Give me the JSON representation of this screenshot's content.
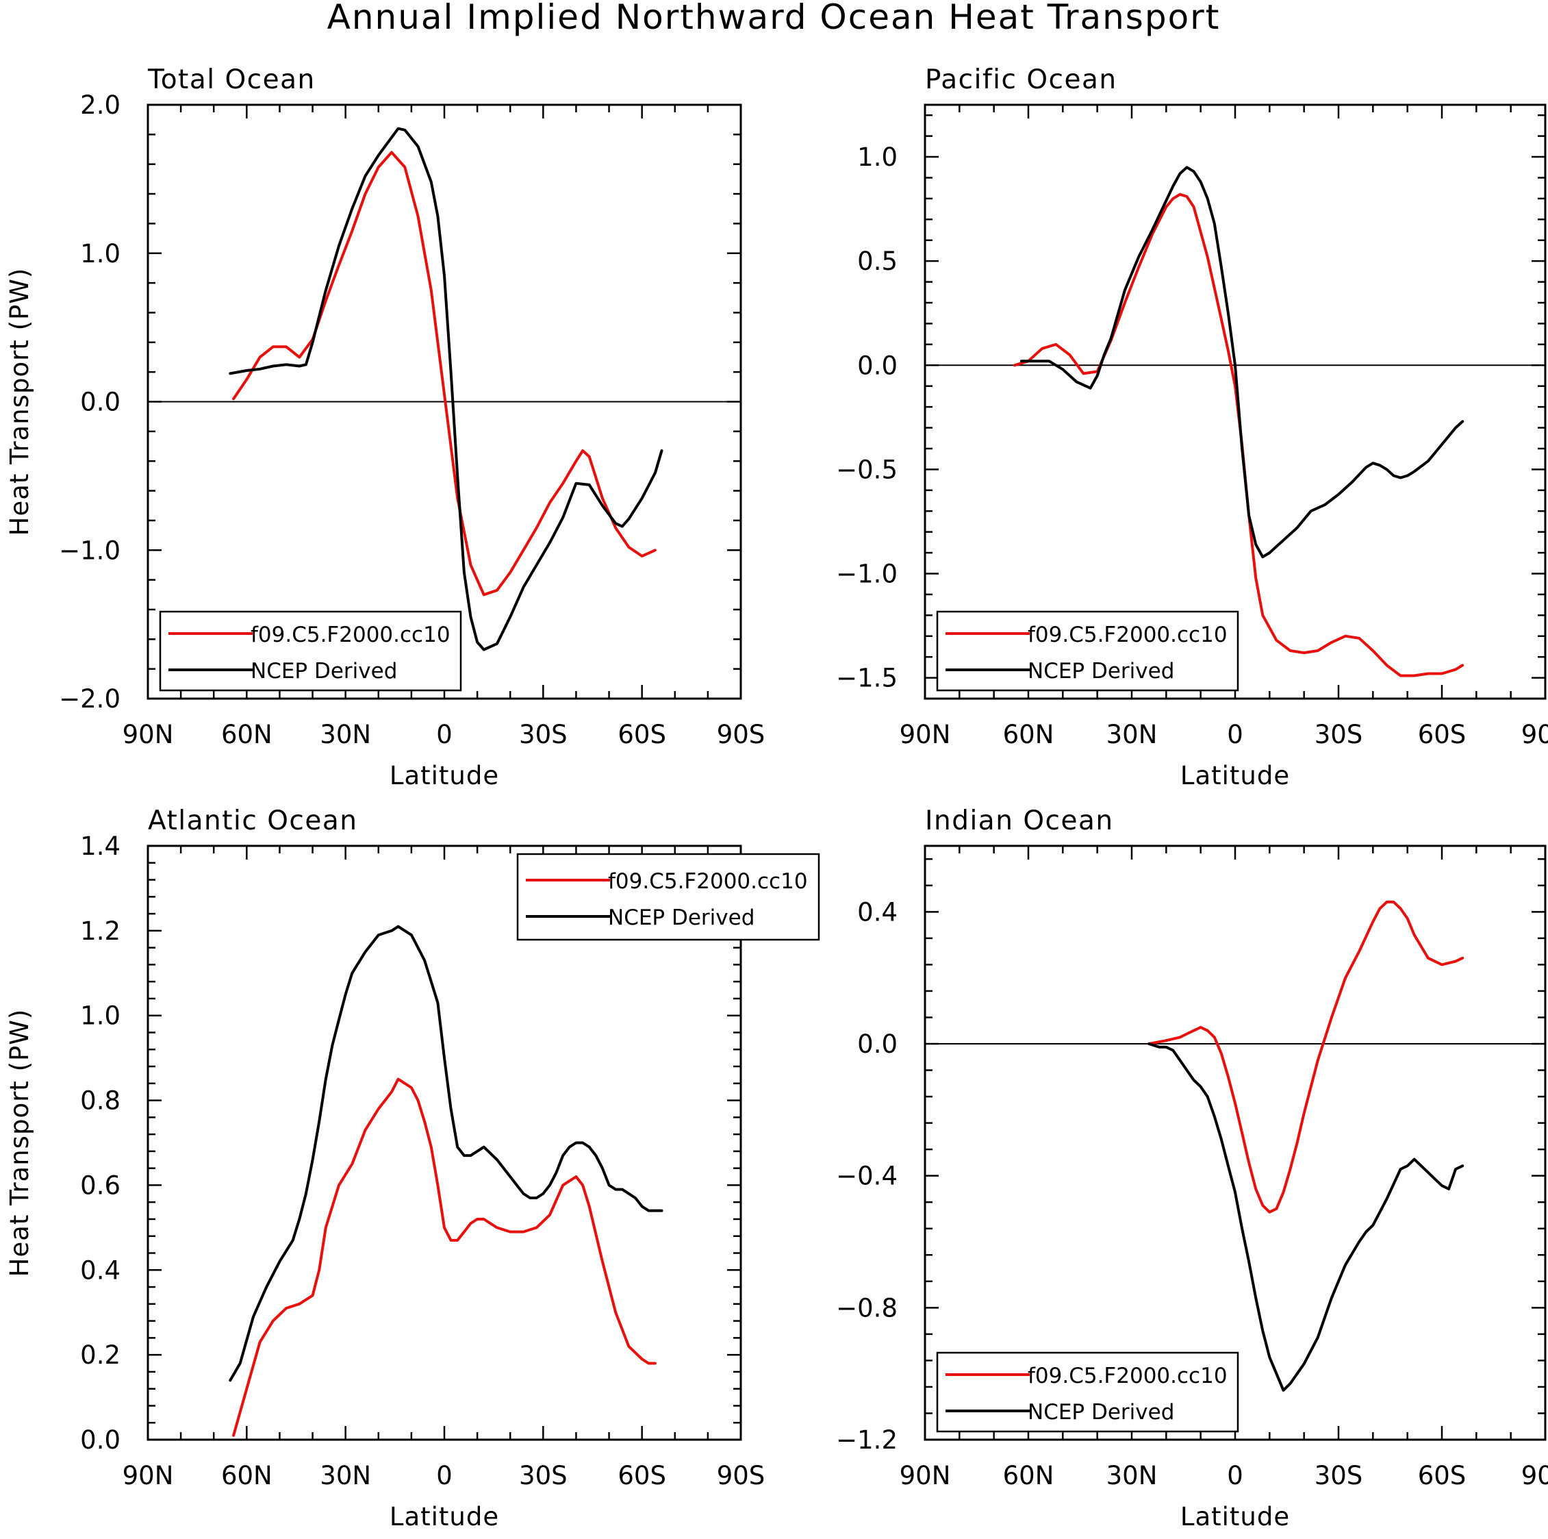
{
  "figure": {
    "title": "Annual Implied Northward Ocean Heat Transport"
  },
  "colors": {
    "model": "#e8100c",
    "obs": "#000000",
    "frame": "#000000"
  },
  "chart_data": [
    {
      "type": "line",
      "title": "Total Ocean",
      "xlabel": "Latitude",
      "ylabel": "Heat Transport (PW)",
      "xlim": [
        90,
        -90
      ],
      "x_ticks": [
        90,
        60,
        30,
        0,
        -30,
        -60,
        -90
      ],
      "x_tick_labels": [
        "90N",
        "60N",
        "30N",
        "0",
        "30S",
        "60S",
        "90S"
      ],
      "ylim": [
        -2.0,
        2.0
      ],
      "y_ticks": [
        -2.0,
        -1.0,
        0.0,
        1.0,
        2.0
      ],
      "y_tick_labels": [
        "−2.0",
        "−1.0",
        "0.0",
        "1.0",
        "2.0"
      ],
      "zero_line": true,
      "legend_position": "bottom-left",
      "series": [
        {
          "name": "f09.C5.F2000.cc10",
          "color": "#e8100c",
          "x": [
            64,
            60,
            56,
            52,
            48,
            44,
            40,
            36,
            32,
            28,
            24,
            20,
            16,
            12,
            8,
            4,
            0,
            -4,
            -8,
            -12,
            -16,
            -20,
            -24,
            -28,
            -32,
            -36,
            -40,
            -42,
            -44,
            -48,
            -52,
            -56,
            -60,
            -64
          ],
          "y": [
            0.02,
            0.15,
            0.3,
            0.37,
            0.37,
            0.3,
            0.42,
            0.68,
            0.92,
            1.15,
            1.4,
            1.58,
            1.68,
            1.58,
            1.25,
            0.75,
            0.05,
            -0.65,
            -1.1,
            -1.3,
            -1.27,
            -1.15,
            -1.0,
            -0.85,
            -0.68,
            -0.55,
            -0.4,
            -0.33,
            -0.37,
            -0.65,
            -0.85,
            -0.98,
            -1.04,
            -1.0
          ]
        },
        {
          "name": "NCEP Derived",
          "color": "#000000",
          "x": [
            65,
            60,
            56,
            52,
            48,
            44,
            42,
            40,
            36,
            32,
            28,
            24,
            20,
            18,
            16,
            14,
            12,
            8,
            4,
            2,
            0,
            -2,
            -4,
            -6,
            -8,
            -10,
            -12,
            -16,
            -20,
            -24,
            -28,
            -32,
            -36,
            -40,
            -44,
            -48,
            -52,
            -54,
            -56,
            -60,
            -64,
            -66
          ],
          "y": [
            0.19,
            0.21,
            0.22,
            0.24,
            0.25,
            0.24,
            0.25,
            0.4,
            0.75,
            1.05,
            1.3,
            1.52,
            1.66,
            1.72,
            1.78,
            1.84,
            1.83,
            1.72,
            1.48,
            1.25,
            0.85,
            0.2,
            -0.5,
            -1.15,
            -1.45,
            -1.62,
            -1.67,
            -1.63,
            -1.45,
            -1.25,
            -1.1,
            -0.95,
            -0.78,
            -0.55,
            -0.56,
            -0.7,
            -0.82,
            -0.84,
            -0.79,
            -0.65,
            -0.48,
            -0.33
          ]
        }
      ]
    },
    {
      "type": "line",
      "title": "Pacific Ocean",
      "xlabel": "Latitude",
      "ylabel": "",
      "xlim": [
        90,
        -90
      ],
      "x_ticks": [
        90,
        60,
        30,
        0,
        -30,
        -60,
        -90
      ],
      "x_tick_labels": [
        "90N",
        "60N",
        "30N",
        "0",
        "30S",
        "60S",
        "90S"
      ],
      "ylim": [
        -1.6,
        1.25
      ],
      "y_ticks": [
        -1.5,
        -1.0,
        -0.5,
        0.0,
        0.5,
        1.0
      ],
      "y_tick_labels": [
        "−1.5",
        "−1.0",
        "−0.5",
        "0.0",
        "0.5",
        "1.0"
      ],
      "zero_line": true,
      "legend_position": "bottom-left",
      "series": [
        {
          "name": "f09.C5.F2000.cc10",
          "color": "#e8100c",
          "x": [
            64,
            60,
            56,
            52,
            48,
            44,
            40,
            36,
            32,
            28,
            24,
            20,
            18,
            16,
            14,
            12,
            8,
            4,
            2,
            0,
            -2,
            -4,
            -6,
            -8,
            -12,
            -16,
            -20,
            -24,
            -28,
            -32,
            -36,
            -40,
            -44,
            -48,
            -52,
            -56,
            -60,
            -64,
            -66
          ],
          "y": [
            0.0,
            0.02,
            0.08,
            0.1,
            0.05,
            -0.04,
            -0.03,
            0.12,
            0.3,
            0.47,
            0.63,
            0.76,
            0.8,
            0.82,
            0.81,
            0.76,
            0.52,
            0.22,
            0.07,
            -0.1,
            -0.38,
            -0.72,
            -1.02,
            -1.2,
            -1.32,
            -1.37,
            -1.38,
            -1.37,
            -1.33,
            -1.3,
            -1.31,
            -1.37,
            -1.44,
            -1.49,
            -1.49,
            -1.48,
            -1.48,
            -1.46,
            -1.44
          ]
        },
        {
          "name": "NCEP Derived",
          "color": "#000000",
          "x": [
            62,
            58,
            54,
            50,
            46,
            42,
            40,
            38,
            36,
            32,
            28,
            24,
            20,
            18,
            16,
            14,
            12,
            10,
            8,
            6,
            4,
            2,
            0,
            -2,
            -4,
            -6,
            -8,
            -10,
            -12,
            -14,
            -18,
            -22,
            -26,
            -30,
            -34,
            -38,
            -40,
            -42,
            -44,
            -46,
            -48,
            -50,
            -52,
            -56,
            -60,
            -64,
            -66
          ],
          "y": [
            0.02,
            0.02,
            0.02,
            -0.02,
            -0.08,
            -0.11,
            -0.05,
            0.05,
            0.13,
            0.36,
            0.52,
            0.65,
            0.79,
            0.86,
            0.92,
            0.95,
            0.93,
            0.88,
            0.8,
            0.68,
            0.47,
            0.25,
            0.0,
            -0.4,
            -0.72,
            -0.86,
            -0.92,
            -0.9,
            -0.87,
            -0.84,
            -0.78,
            -0.7,
            -0.67,
            -0.62,
            -0.56,
            -0.49,
            -0.47,
            -0.48,
            -0.5,
            -0.53,
            -0.54,
            -0.53,
            -0.51,
            -0.46,
            -0.38,
            -0.3,
            -0.27
          ]
        }
      ]
    },
    {
      "type": "line",
      "title": "Atlantic Ocean",
      "xlabel": "Latitude",
      "ylabel": "Heat Transport (PW)",
      "xlim": [
        90,
        -90
      ],
      "x_ticks": [
        90,
        60,
        30,
        0,
        -30,
        -60,
        -90
      ],
      "x_tick_labels": [
        "90N",
        "60N",
        "30N",
        "0",
        "30S",
        "60S",
        "90S"
      ],
      "ylim": [
        0.0,
        1.4
      ],
      "y_ticks": [
        0.0,
        0.2,
        0.4,
        0.6,
        0.8,
        1.0,
        1.2,
        1.4
      ],
      "y_tick_labels": [
        "0.0",
        "0.2",
        "0.4",
        "0.6",
        "0.8",
        "1.0",
        "1.2",
        "1.4"
      ],
      "zero_line": false,
      "legend_position": "top-right",
      "series": [
        {
          "name": "f09.C5.F2000.cc10",
          "color": "#e8100c",
          "x": [
            64,
            60,
            56,
            52,
            48,
            44,
            40,
            38,
            36,
            32,
            28,
            24,
            20,
            16,
            14,
            12,
            10,
            8,
            6,
            4,
            2,
            0,
            -2,
            -4,
            -6,
            -8,
            -10,
            -12,
            -16,
            -20,
            -24,
            -28,
            -32,
            -36,
            -40,
            -42,
            -44,
            -48,
            -52,
            -56,
            -60,
            -62,
            -64
          ],
          "y": [
            0.01,
            0.12,
            0.23,
            0.28,
            0.31,
            0.32,
            0.34,
            0.4,
            0.5,
            0.6,
            0.65,
            0.73,
            0.78,
            0.82,
            0.85,
            0.84,
            0.83,
            0.8,
            0.75,
            0.69,
            0.6,
            0.5,
            0.47,
            0.47,
            0.49,
            0.51,
            0.52,
            0.52,
            0.5,
            0.49,
            0.49,
            0.5,
            0.53,
            0.6,
            0.62,
            0.6,
            0.55,
            0.42,
            0.3,
            0.22,
            0.19,
            0.18,
            0.18
          ]
        },
        {
          "name": "NCEP Derived",
          "color": "#000000",
          "x": [
            65,
            62,
            58,
            54,
            50,
            46,
            44,
            42,
            40,
            38,
            36,
            34,
            32,
            30,
            28,
            24,
            20,
            16,
            14,
            12,
            10,
            8,
            6,
            4,
            2,
            0,
            -2,
            -4,
            -6,
            -8,
            -10,
            -12,
            -16,
            -20,
            -24,
            -26,
            -28,
            -30,
            -32,
            -34,
            -36,
            -38,
            -40,
            -42,
            -44,
            -46,
            -48,
            -50,
            -52,
            -54,
            -56,
            -58,
            -60,
            -62,
            -64,
            -66
          ],
          "y": [
            0.14,
            0.18,
            0.29,
            0.36,
            0.42,
            0.47,
            0.52,
            0.58,
            0.66,
            0.75,
            0.85,
            0.93,
            0.99,
            1.05,
            1.1,
            1.15,
            1.19,
            1.2,
            1.21,
            1.2,
            1.19,
            1.16,
            1.13,
            1.08,
            1.03,
            0.9,
            0.78,
            0.69,
            0.67,
            0.67,
            0.68,
            0.69,
            0.66,
            0.62,
            0.58,
            0.57,
            0.57,
            0.58,
            0.6,
            0.63,
            0.67,
            0.69,
            0.7,
            0.7,
            0.69,
            0.67,
            0.64,
            0.6,
            0.59,
            0.59,
            0.58,
            0.57,
            0.55,
            0.54,
            0.54,
            0.54
          ]
        }
      ]
    },
    {
      "type": "line",
      "title": "Indian Ocean",
      "xlabel": "Latitude",
      "ylabel": "",
      "xlim": [
        90,
        -90
      ],
      "x_ticks": [
        90,
        60,
        30,
        0,
        -30,
        -60,
        -90
      ],
      "x_tick_labels": [
        "90N",
        "60N",
        "30N",
        "0",
        "30S",
        "60S",
        "90S"
      ],
      "ylim": [
        -1.2,
        0.6
      ],
      "y_ticks": [
        -1.2,
        -0.8,
        -0.4,
        0.0,
        0.4
      ],
      "y_tick_labels": [
        "−1.2",
        "−0.8",
        "−0.4",
        "0.0",
        "0.4"
      ],
      "zero_line": true,
      "legend_position": "bottom-left",
      "series": [
        {
          "name": "f09.C5.F2000.cc10",
          "color": "#e8100c",
          "x": [
            25,
            20,
            16,
            14,
            12,
            10,
            8,
            6,
            4,
            2,
            0,
            -2,
            -4,
            -6,
            -8,
            -10,
            -12,
            -14,
            -16,
            -18,
            -20,
            -24,
            -28,
            -32,
            -36,
            -40,
            -42,
            -44,
            -46,
            -48,
            -50,
            -52,
            -56,
            -60,
            -64,
            -66
          ],
          "y": [
            0.0,
            0.01,
            0.02,
            0.03,
            0.04,
            0.05,
            0.04,
            0.02,
            -0.03,
            -0.1,
            -0.18,
            -0.27,
            -0.36,
            -0.44,
            -0.49,
            -0.51,
            -0.5,
            -0.45,
            -0.38,
            -0.3,
            -0.21,
            -0.05,
            0.08,
            0.2,
            0.28,
            0.37,
            0.41,
            0.43,
            0.43,
            0.41,
            0.38,
            0.33,
            0.26,
            0.24,
            0.25,
            0.26
          ]
        },
        {
          "name": "NCEP Derived",
          "color": "#000000",
          "x": [
            25,
            22,
            20,
            18,
            16,
            14,
            12,
            10,
            8,
            6,
            4,
            2,
            0,
            -2,
            -4,
            -6,
            -8,
            -10,
            -12,
            -14,
            -16,
            -18,
            -20,
            -24,
            -28,
            -32,
            -36,
            -38,
            -40,
            -42,
            -44,
            -48,
            -50,
            -52,
            -54,
            -56,
            -58,
            -60,
            -62,
            -64,
            -66
          ],
          "y": [
            0.0,
            -0.01,
            -0.01,
            -0.02,
            -0.05,
            -0.08,
            -0.11,
            -0.13,
            -0.16,
            -0.22,
            -0.29,
            -0.37,
            -0.45,
            -0.56,
            -0.66,
            -0.77,
            -0.87,
            -0.95,
            -1.0,
            -1.05,
            -1.03,
            -1.0,
            -0.97,
            -0.89,
            -0.77,
            -0.67,
            -0.6,
            -0.57,
            -0.55,
            -0.51,
            -0.47,
            -0.38,
            -0.37,
            -0.35,
            -0.37,
            -0.39,
            -0.41,
            -0.43,
            -0.44,
            -0.38,
            -0.37
          ]
        }
      ]
    }
  ]
}
